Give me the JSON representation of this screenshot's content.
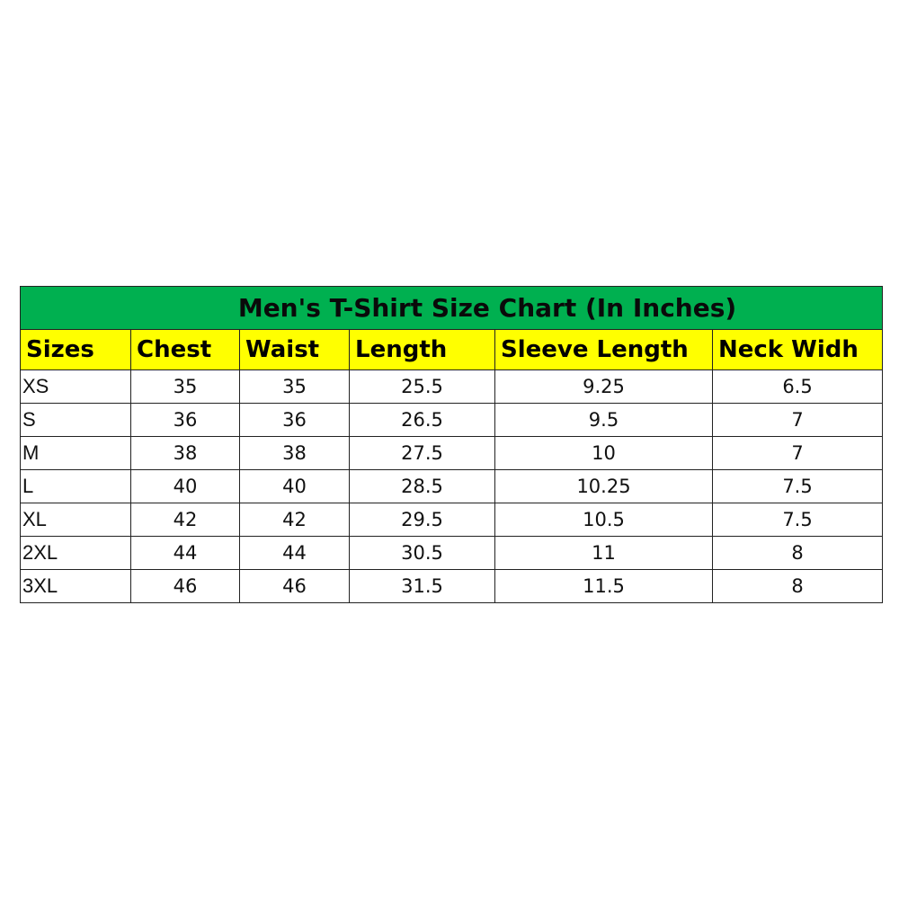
{
  "title": "Men's T-Shirt Size Chart (In Inches)",
  "colors": {
    "title_bg": "#00b050",
    "header_bg": "#ffff00"
  },
  "columns": [
    "Sizes",
    "Chest",
    "Waist",
    "Length",
    "Sleeve Length",
    "Neck Widh"
  ],
  "rows": [
    [
      "XS",
      "35",
      "35",
      "25.5",
      "9.25",
      "6.5"
    ],
    [
      "S",
      "36",
      "36",
      "26.5",
      "9.5",
      "7"
    ],
    [
      "M",
      "38",
      "38",
      "27.5",
      "10",
      "7"
    ],
    [
      "L",
      "40",
      "40",
      "28.5",
      "10.25",
      "7.5"
    ],
    [
      "XL",
      "42",
      "42",
      "29.5",
      "10.5",
      "7.5"
    ],
    [
      "2XL",
      "44",
      "44",
      "30.5",
      "11",
      "8"
    ],
    [
      "3XL",
      "46",
      "46",
      "31.5",
      "11.5",
      "8"
    ]
  ]
}
